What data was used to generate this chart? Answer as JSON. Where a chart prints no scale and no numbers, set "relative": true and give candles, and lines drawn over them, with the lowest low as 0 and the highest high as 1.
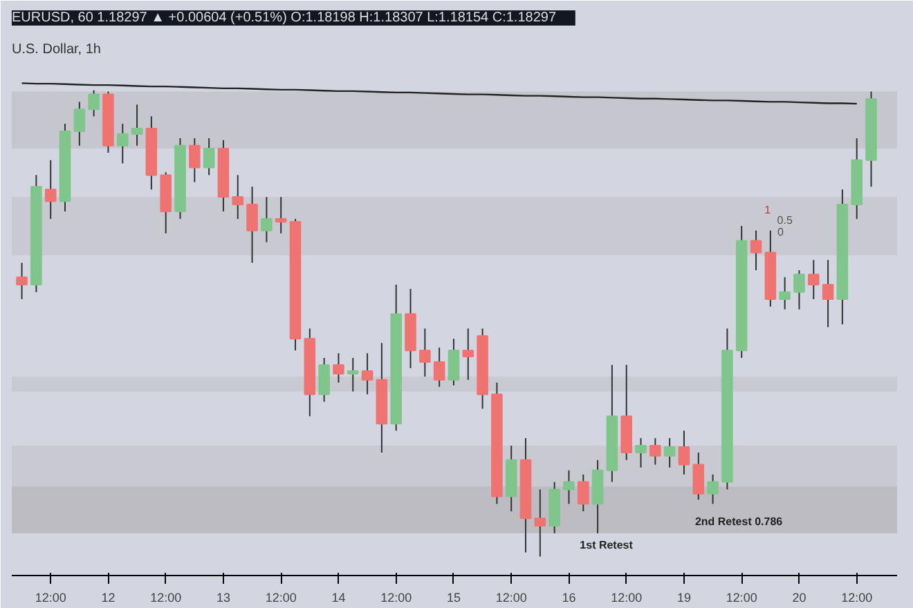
{
  "chart_data": {
    "type": "candlestick",
    "relative": true,
    "title": "EURUSD, 60  1.18297 ▲ +0.00604 (+0.51%)  O:1.18198  H:1.18307  L:1.18154  C:1.18297",
    "subtitle": "U.S. Dollar, 1h",
    "categories": [
      null,
      null,
      "12:00",
      null,
      null,
      null,
      "12",
      null,
      null,
      null,
      "12:00",
      null,
      null,
      null,
      "13",
      null,
      null,
      null,
      "12:00",
      null,
      null,
      null,
      "14",
      null,
      null,
      null,
      "12:00",
      null,
      null,
      null,
      "15",
      null,
      null,
      null,
      "12:00",
      null,
      null,
      null,
      "16",
      null,
      null,
      null,
      "12:00",
      null,
      null,
      null,
      "19",
      null,
      null,
      null,
      "12:00",
      null,
      null,
      null,
      "20",
      null,
      null,
      null,
      "12:00",
      null
    ],
    "tick_labels": "x",
    "grid": false,
    "bands": [
      {
        "axis": "y",
        "from": 0.875,
        "to": 0.997,
        "color": "#c0c1c6"
      },
      {
        "axis": "y",
        "from": 0.646,
        "to": 0.771,
        "color": "#c4c5ca"
      },
      {
        "axis": "y",
        "from": 0.354,
        "to": 0.386,
        "color": "#c4c5ca"
      },
      {
        "axis": "y",
        "from": 0.05,
        "to": 0.238,
        "color": "#c4c5ca"
      },
      {
        "axis": "y",
        "from": 0.05,
        "to": 0.15,
        "color": "#b6b7bc"
      }
    ],
    "annotations": [
      "1st Retest",
      "2nd Retest 0.786",
      "1",
      "0.5",
      "0"
    ],
    "series": [
      {
        "ohlc": [
          [
            0.599,
            0.63,
            0.552,
            0.583
          ],
          [
            0.583,
            0.818,
            0.567,
            0.793
          ],
          [
            0.787,
            0.85,
            0.724,
            0.762
          ],
          [
            0.762,
            0.928,
            0.74,
            0.912
          ],
          [
            0.912,
            0.975,
            0.881,
            0.959
          ],
          [
            0.959,
            1.0,
            0.944,
            0.991
          ],
          [
            0.991,
            0.997,
            0.866,
            0.881
          ],
          [
            0.881,
            0.928,
            0.843,
            0.906
          ],
          [
            0.906,
            0.969,
            0.881,
            0.918
          ],
          [
            0.918,
            0.944,
            0.787,
            0.818
          ],
          [
            0.818,
            0.824,
            0.693,
            0.74
          ],
          [
            0.74,
            0.897,
            0.724,
            0.881
          ],
          [
            0.881,
            0.897,
            0.803,
            0.834
          ],
          [
            0.834,
            0.897,
            0.818,
            0.875
          ],
          [
            0.875,
            0.893,
            0.74,
            0.771
          ],
          [
            0.771,
            0.818,
            0.724,
            0.755
          ],
          [
            0.755,
            0.793,
            0.63,
            0.699
          ],
          [
            0.699,
            0.771,
            0.674,
            0.724
          ],
          [
            0.724,
            0.771,
            0.693,
            0.718
          ],
          [
            0.718,
            0.724,
            0.442,
            0.467
          ],
          [
            0.467,
            0.489,
            0.301,
            0.348
          ],
          [
            0.348,
            0.426,
            0.332,
            0.411
          ],
          [
            0.411,
            0.436,
            0.373,
            0.392
          ],
          [
            0.392,
            0.426,
            0.354,
            0.398
          ],
          [
            0.398,
            0.436,
            0.348,
            0.379
          ],
          [
            0.379,
            0.458,
            0.223,
            0.285
          ],
          [
            0.285,
            0.583,
            0.27,
            0.52
          ],
          [
            0.52,
            0.574,
            0.404,
            0.442
          ],
          [
            0.442,
            0.489,
            0.386,
            0.417
          ],
          [
            0.417,
            0.448,
            0.364,
            0.379
          ],
          [
            0.379,
            0.467,
            0.367,
            0.442
          ],
          [
            0.442,
            0.489,
            0.379,
            0.429
          ],
          [
            0.473,
            0.489,
            0.317,
            0.348
          ],
          [
            0.348,
            0.373,
            0.113,
            0.129
          ],
          [
            0.129,
            0.238,
            0.097,
            0.207
          ],
          [
            0.207,
            0.254,
            0.009,
            0.082
          ],
          [
            0.082,
            0.144,
            0.0,
            0.066
          ],
          [
            0.066,
            0.16,
            0.05,
            0.144
          ],
          [
            0.144,
            0.185,
            0.113,
            0.16
          ],
          [
            0.16,
            0.176,
            0.097,
            0.113
          ],
          [
            0.113,
            0.207,
            0.05,
            0.185
          ],
          [
            0.185,
            0.411,
            0.16,
            0.301
          ],
          [
            0.301,
            0.411,
            0.207,
            0.223
          ],
          [
            0.223,
            0.254,
            0.191,
            0.238
          ],
          [
            0.238,
            0.254,
            0.197,
            0.216
          ],
          [
            0.216,
            0.254,
            0.191,
            0.235
          ],
          [
            0.235,
            0.27,
            0.176,
            0.197
          ],
          [
            0.197,
            0.223,
            0.122,
            0.135
          ],
          [
            0.135,
            0.176,
            0.113,
            0.16
          ],
          [
            0.16,
            0.489,
            0.144,
            0.442
          ],
          [
            0.442,
            0.709,
            0.426,
            0.677
          ],
          [
            0.677,
            0.699,
            0.614,
            0.652
          ],
          [
            0.652,
            0.699,
            0.536,
            0.552
          ],
          [
            0.552,
            0.599,
            0.53,
            0.567
          ],
          [
            0.567,
            0.614,
            0.53,
            0.605
          ],
          [
            0.605,
            0.636,
            0.552,
            0.583
          ],
          [
            0.583,
            0.636,
            0.492,
            0.552
          ],
          [
            0.552,
            0.787,
            0.498,
            0.755
          ],
          [
            0.755,
            0.897,
            0.724,
            0.85
          ],
          [
            0.85,
            0.997,
            0.793,
            0.981
          ]
        ],
        "colors": [
          "#ef7370",
          "#7fc58c",
          "#ef7370",
          "#7fc58c",
          "#7fc58c",
          "#7fc58c",
          "#ef7370",
          "#7fc58c",
          "#7fc58c",
          "#ef7370",
          "#ef7370",
          "#7fc58c",
          "#ef7370",
          "#7fc58c",
          "#ef7370",
          "#ef7370",
          "#ef7370",
          "#7fc58c",
          "#ef7370",
          "#ef7370",
          "#ef7370",
          "#7fc58c",
          "#ef7370",
          "#7fc58c",
          "#ef7370",
          "#ef7370",
          "#7fc58c",
          "#ef7370",
          "#ef7370",
          "#ef7370",
          "#7fc58c",
          "#ef7370",
          "#ef7370",
          "#ef7370",
          "#7fc58c",
          "#ef7370",
          "#ef7370",
          "#7fc58c",
          "#7fc58c",
          "#ef7370",
          "#7fc58c",
          "#7fc58c",
          "#ef7370",
          "#7fc58c",
          "#ef7370",
          "#7fc58c",
          "#ef7370",
          "#ef7370",
          "#7fc58c",
          "#7fc58c",
          "#7fc58c",
          "#ef7370",
          "#ef7370",
          "#7fc58c",
          "#7fc58c",
          "#ef7370",
          "#ef7370",
          "#7fc58c",
          "#7fc58c",
          "#7fc58c"
        ]
      },
      {
        "type": "line",
        "values": [
          1.015,
          1.014,
          1.014,
          1.013,
          1.012,
          1.011,
          1.011,
          1.01,
          1.009,
          1.008,
          1.008,
          1.007,
          1.006,
          1.005,
          1.004,
          1.004,
          1.003,
          1.002,
          1.001,
          1.001,
          1.0,
          0.999,
          0.998,
          0.998,
          0.997,
          0.996,
          0.995,
          0.995,
          0.994,
          0.993,
          0.992,
          0.991,
          0.991,
          0.99,
          0.989,
          0.988,
          0.988,
          0.987,
          0.986,
          0.985,
          0.985,
          0.984,
          0.983,
          0.982,
          0.982,
          0.981,
          0.98,
          0.979,
          0.978,
          0.978,
          0.977,
          0.976,
          0.975,
          0.975,
          0.974,
          0.973,
          0.972,
          0.972,
          0.971,
          null
        ],
        "color": "#222222"
      }
    ]
  }
}
